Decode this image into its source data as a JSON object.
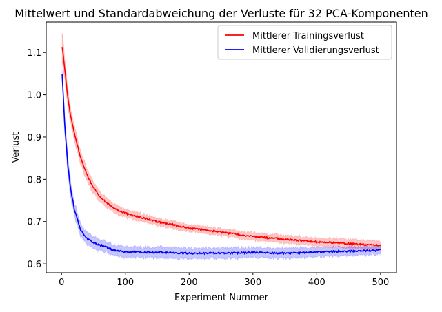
{
  "chart_data": {
    "type": "line",
    "title": "Mittelwert und Standardabweichung der Verluste für 32 PCA-Komponenten",
    "xlabel": "Experiment Nummer",
    "ylabel": "Verlust",
    "xlim": [
      -24,
      525
    ],
    "ylim": [
      0.579,
      1.172
    ],
    "xticks": [
      0,
      100,
      200,
      300,
      400,
      500
    ],
    "xtick_labels": [
      "0",
      "100",
      "200",
      "300",
      "400",
      "500"
    ],
    "yticks": [
      0.6,
      0.7,
      0.8,
      0.9,
      1.0,
      1.1
    ],
    "ytick_labels": [
      "0.6",
      "0.7",
      "0.8",
      "0.9",
      "1.0",
      "1.1"
    ],
    "grid": false,
    "legend_position": "top-right",
    "x": [
      1,
      5,
      10,
      15,
      20,
      30,
      40,
      50,
      60,
      70,
      80,
      90,
      100,
      120,
      150,
      200,
      250,
      300,
      350,
      400,
      450,
      500
    ],
    "series": [
      {
        "name": "Mittlerer Trainingsverlust",
        "color": "#ff0000",
        "values": [
          1.115,
          1.06,
          0.99,
          0.945,
          0.91,
          0.85,
          0.81,
          0.78,
          0.76,
          0.745,
          0.735,
          0.725,
          0.72,
          0.712,
          0.7,
          0.685,
          0.675,
          0.665,
          0.658,
          0.652,
          0.648,
          0.643
        ],
        "std": [
          0.03,
          0.025,
          0.02,
          0.018,
          0.016,
          0.015,
          0.014,
          0.013,
          0.012,
          0.011,
          0.01,
          0.01,
          0.01,
          0.009,
          0.009,
          0.008,
          0.008,
          0.009,
          0.009,
          0.009,
          0.01,
          0.01
        ]
      },
      {
        "name": "Mittlerer Validierungsverlust",
        "color": "#0000ff",
        "values": [
          1.05,
          0.93,
          0.83,
          0.77,
          0.73,
          0.68,
          0.66,
          0.65,
          0.645,
          0.64,
          0.633,
          0.63,
          0.628,
          0.628,
          0.627,
          0.625,
          0.625,
          0.627,
          0.625,
          0.628,
          0.63,
          0.632
        ],
        "std": [
          0.01,
          0.02,
          0.02,
          0.018,
          0.016,
          0.015,
          0.014,
          0.013,
          0.013,
          0.013,
          0.012,
          0.012,
          0.012,
          0.012,
          0.013,
          0.012,
          0.012,
          0.012,
          0.012,
          0.011,
          0.01,
          0.01
        ]
      }
    ]
  }
}
